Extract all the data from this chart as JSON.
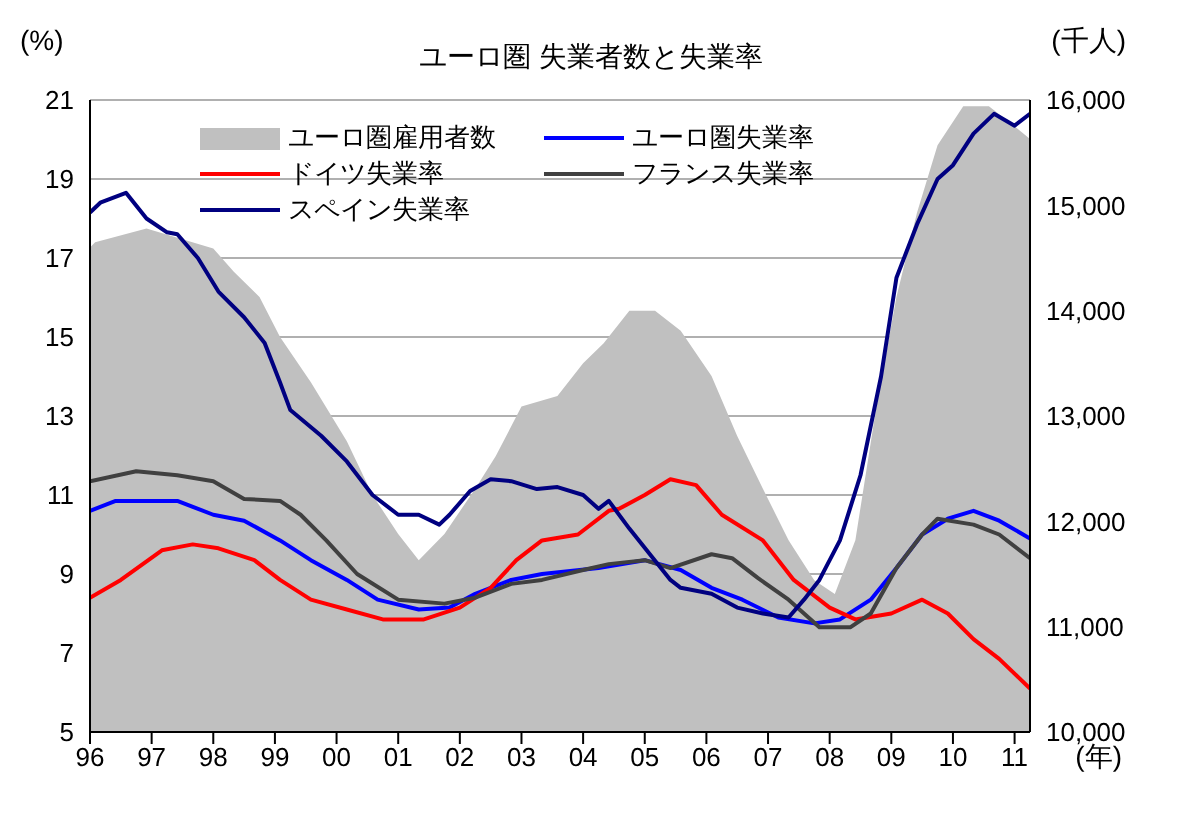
{
  "chart_data": {
    "type": "line",
    "title": "ユーロ圏 失業者数と失業率",
    "ylabel": "(%)",
    "y2label": "(千人)",
    "xlabel": "(年)",
    "xlim": [
      "1996-01",
      "2011-04"
    ],
    "xticks": [
      {
        "value": "1996-01",
        "label": "96"
      },
      {
        "value": "1997-01",
        "label": "97"
      },
      {
        "value": "1998-01",
        "label": "98"
      },
      {
        "value": "1999-01",
        "label": "99"
      },
      {
        "value": "2000-01",
        "label": "00"
      },
      {
        "value": "2001-01",
        "label": "01"
      },
      {
        "value": "2002-01",
        "label": "02"
      },
      {
        "value": "2003-01",
        "label": "03"
      },
      {
        "value": "2004-01",
        "label": "04"
      },
      {
        "value": "2005-01",
        "label": "05"
      },
      {
        "value": "2006-01",
        "label": "06"
      },
      {
        "value": "2007-01",
        "label": "07"
      },
      {
        "value": "2008-01",
        "label": "08"
      },
      {
        "value": "2009-01",
        "label": "09"
      },
      {
        "value": "2010-01",
        "label": "10"
      },
      {
        "value": "2011-01",
        "label": "11"
      }
    ],
    "ylim": [
      5,
      21
    ],
    "yticks": [
      5,
      7,
      9,
      11,
      13,
      15,
      17,
      19,
      21
    ],
    "y2lim": [
      10000,
      16000
    ],
    "y2ticks": [
      {
        "value": 10000,
        "label": "10,000"
      },
      {
        "value": 11000,
        "label": "11,000"
      },
      {
        "value": 12000,
        "label": "12,000"
      },
      {
        "value": 13000,
        "label": "13,000"
      },
      {
        "value": 14000,
        "label": "14,000"
      },
      {
        "value": 15000,
        "label": "15,000"
      },
      {
        "value": 16000,
        "label": "16,000"
      }
    ],
    "grid": "y",
    "legend": "top",
    "marker": "none",
    "line_style": "solid",
    "series": [
      {
        "name": "ユーロ圏雇用者数",
        "type": "area",
        "axis": "y2",
        "color": "#c0c0c0",
        "x": [
          "1996-01",
          "1996-02",
          "1996-12",
          "1998-01",
          "1998-05",
          "1998-10",
          "1999-02",
          "1999-08",
          "2000-03",
          "2000-08",
          "2001-01",
          "2001-05",
          "2001-10",
          "2002-04",
          "2002-08",
          "2003-01",
          "2003-08",
          "2004-01",
          "2004-05",
          "2004-10",
          "2005-03",
          "2005-08",
          "2006-02",
          "2006-07",
          "2006-12",
          "2007-05",
          "2007-10",
          "2008-02",
          "2008-06",
          "2008-10",
          "2009-02",
          "2009-06",
          "2009-10",
          "2010-03",
          "2010-08",
          "2011-01",
          "2011-04"
        ],
        "values": [
          14600,
          14650,
          14780,
          14590,
          14370,
          14130,
          13750,
          13320,
          12760,
          12250,
          11880,
          11630,
          11880,
          12310,
          12620,
          13090,
          13190,
          13500,
          13690,
          14000,
          14000,
          13810,
          13380,
          12810,
          12310,
          11820,
          11440,
          11310,
          11820,
          13060,
          14130,
          14930,
          15570,
          15940,
          15940,
          15750,
          15630
        ]
      },
      {
        "name": "ユーロ圏失業率",
        "color": "#0000ff",
        "x": [
          "1996-01",
          "1996-06",
          "1997-06",
          "1998-01",
          "1998-07",
          "1999-02",
          "1999-08",
          "2000-03",
          "2000-09",
          "2001-05",
          "2001-11",
          "2002-04",
          "2002-11",
          "2003-05",
          "2004-04",
          "2005-01",
          "2005-08",
          "2006-02",
          "2006-08",
          "2007-03",
          "2007-10",
          "2008-03",
          "2008-09",
          "2009-02",
          "2009-07",
          "2009-12",
          "2010-05",
          "2010-10",
          "2011-04"
        ],
        "values": [
          10.6,
          10.85,
          10.85,
          10.5,
          10.35,
          9.85,
          9.35,
          8.85,
          8.35,
          8.1,
          8.15,
          8.5,
          8.85,
          9.0,
          9.15,
          9.35,
          9.1,
          8.65,
          8.35,
          7.9,
          7.75,
          7.85,
          8.35,
          9.15,
          10.0,
          10.4,
          10.6,
          10.35,
          9.9
        ]
      },
      {
        "name": "ドイツ失業率",
        "color": "#ff0000",
        "x": [
          "1996-01",
          "1996-07",
          "1997-03",
          "1997-09",
          "1998-02",
          "1998-09",
          "1999-02",
          "1999-08",
          "2000-03",
          "2000-10",
          "2001-06",
          "2002-01",
          "2002-07",
          "2002-12",
          "2003-05",
          "2003-12",
          "2004-06",
          "2004-08",
          "2005-01",
          "2005-06",
          "2005-11",
          "2006-04",
          "2006-12",
          "2007-06",
          "2008-01",
          "2008-06",
          "2009-01",
          "2009-07",
          "2009-12",
          "2010-05",
          "2010-10",
          "2011-04"
        ],
        "values": [
          8.4,
          8.85,
          9.6,
          9.75,
          9.65,
          9.35,
          8.85,
          8.35,
          8.1,
          7.85,
          7.85,
          8.15,
          8.65,
          9.35,
          9.85,
          10.0,
          10.6,
          10.65,
          11.0,
          11.4,
          11.25,
          10.5,
          9.85,
          8.85,
          8.15,
          7.85,
          8.0,
          8.35,
          8.0,
          7.35,
          6.85,
          6.1
        ]
      },
      {
        "name": "フランス失業率",
        "color": "#404040",
        "x": [
          "1996-01",
          "1996-10",
          "1997-06",
          "1998-01",
          "1998-07",
          "1999-02",
          "1999-06",
          "1999-11",
          "2000-05",
          "2001-01",
          "2001-10",
          "2002-04",
          "2002-11",
          "2003-05",
          "2004-01",
          "2004-06",
          "2005-01",
          "2005-06",
          "2006-02",
          "2006-06",
          "2006-11",
          "2007-05",
          "2007-11",
          "2008-05",
          "2008-09",
          "2009-02",
          "2009-07",
          "2009-10",
          "2010-05",
          "2010-10",
          "2011-04"
        ],
        "values": [
          11.35,
          11.6,
          11.5,
          11.35,
          10.9,
          10.85,
          10.5,
          9.85,
          9.0,
          8.35,
          8.25,
          8.4,
          8.75,
          8.85,
          9.1,
          9.25,
          9.35,
          9.15,
          9.5,
          9.4,
          8.9,
          8.35,
          7.65,
          7.65,
          8.0,
          9.15,
          10.0,
          10.4,
          10.25,
          10.0,
          9.4
        ]
      },
      {
        "name": "スペイン失業率",
        "color": "#000080",
        "x": [
          "1996-01",
          "1996-03",
          "1996-08",
          "1996-12",
          "1997-04",
          "1997-06",
          "1997-10",
          "1998-02",
          "1998-07",
          "1998-11",
          "1999-02",
          "1999-04",
          "1999-10",
          "2000-03",
          "2000-08",
          "2001-01",
          "2001-05",
          "2001-09",
          "2001-11",
          "2002-03",
          "2002-07",
          "2002-11",
          "2003-04",
          "2003-08",
          "2004-01",
          "2004-04",
          "2004-06",
          "2004-10",
          "2005-02",
          "2005-06",
          "2005-08",
          "2006-02",
          "2006-07",
          "2006-12",
          "2007-05",
          "2007-08",
          "2007-11",
          "2008-03",
          "2008-07",
          "2008-11",
          "2009-02",
          "2009-06",
          "2009-10",
          "2010-01",
          "2010-05",
          "2010-09",
          "2011-01",
          "2011-04"
        ],
        "values": [
          18.15,
          18.4,
          18.65,
          18.0,
          17.65,
          17.6,
          17.0,
          16.15,
          15.5,
          14.85,
          13.85,
          13.15,
          12.5,
          11.85,
          11.0,
          10.5,
          10.5,
          10.25,
          10.5,
          11.1,
          11.4,
          11.35,
          11.15,
          11.2,
          11.0,
          10.65,
          10.85,
          10.15,
          9.5,
          8.85,
          8.65,
          8.5,
          8.15,
          8.0,
          7.9,
          8.35,
          8.85,
          9.85,
          11.5,
          14.0,
          16.5,
          17.85,
          19.0,
          19.35,
          20.15,
          20.65,
          20.35,
          20.65
        ]
      }
    ]
  }
}
